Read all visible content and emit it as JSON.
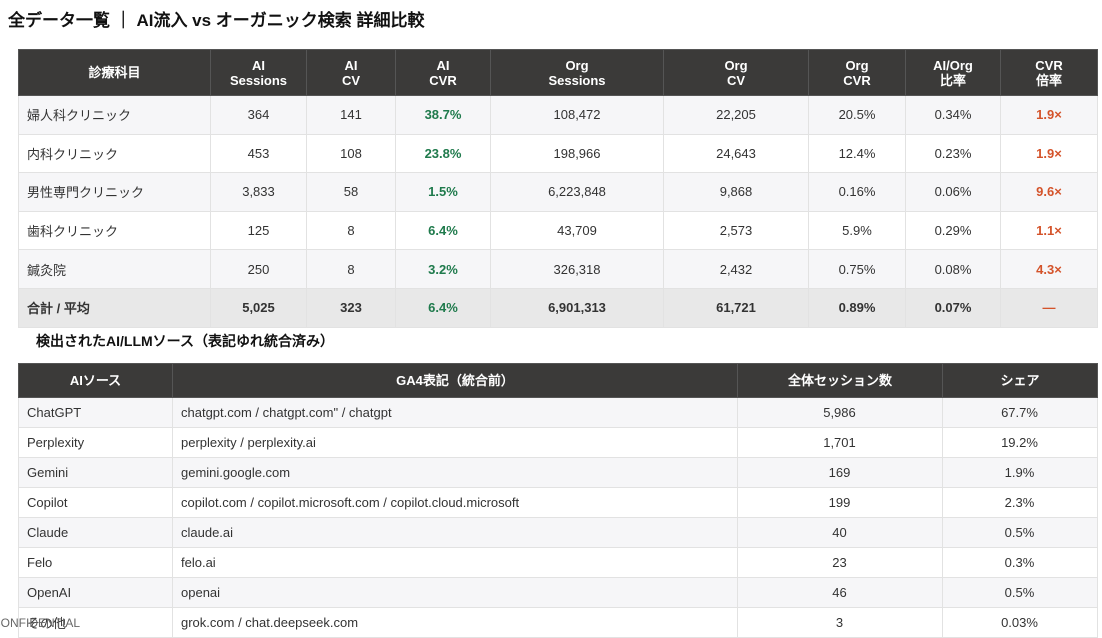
{
  "title": "全データ一覧 ｜ AI流入 vs オーガニック検索 詳細比較",
  "comparison_table": {
    "headers": [
      "診療科目",
      "AI\nSessions",
      "AI\nCV",
      "AI\nCVR",
      "Org\nSessions",
      "Org\nCV",
      "Org\nCVR",
      "AI/Org\n比率",
      "CVR\n倍率"
    ],
    "rows": [
      [
        "婦人科クリニック",
        "364",
        "141",
        "38.7%",
        "108,472",
        "22,205",
        "20.5%",
        "0.34%",
        "1.9×"
      ],
      [
        "内科クリニック",
        "453",
        "108",
        "23.8%",
        "198,966",
        "24,643",
        "12.4%",
        "0.23%",
        "1.9×"
      ],
      [
        "男性専門クリニック",
        "3,833",
        "58",
        "1.5%",
        "6,223,848",
        "9,868",
        "0.16%",
        "0.06%",
        "9.6×"
      ],
      [
        "歯科クリニック",
        "125",
        "8",
        "6.4%",
        "43,709",
        "2,573",
        "5.9%",
        "0.29%",
        "1.1×"
      ],
      [
        "鍼灸院",
        "250",
        "8",
        "3.2%",
        "326,318",
        "2,432",
        "0.75%",
        "0.08%",
        "4.3×"
      ]
    ],
    "total": [
      "合計 / 平均",
      "5,025",
      "323",
      "6.4%",
      "6,901,313",
      "61,721",
      "0.89%",
      "0.07%",
      "—"
    ]
  },
  "sources_heading": "検出されたAI/LLMソース（表記ゆれ統合済み）",
  "sources_table": {
    "headers": [
      "AIソース",
      "GA4表記（統合前）",
      "全体セッション数",
      "シェア"
    ],
    "rows": [
      [
        "ChatGPT",
        "chatgpt.com / chatgpt.com\" / chatgpt",
        "5,986",
        "67.7%"
      ],
      [
        "Perplexity",
        "perplexity / perplexity.ai",
        "1,701",
        "19.2%"
      ],
      [
        "Gemini",
        "gemini.google.com",
        "169",
        "1.9%"
      ],
      [
        "Copilot",
        "copilot.com / copilot.microsoft.com / copilot.cloud.microsoft",
        "199",
        "2.3%"
      ],
      [
        "Claude",
        "claude.ai",
        "40",
        "0.5%"
      ],
      [
        "Felo",
        "felo.ai",
        "23",
        "0.3%"
      ],
      [
        "OpenAI",
        "openai",
        "46",
        "0.5%"
      ],
      [
        "その他",
        "grok.com / chat.deepseek.com",
        "3",
        "0.03%"
      ]
    ]
  },
  "footer": "CONFIDENTIAL"
}
